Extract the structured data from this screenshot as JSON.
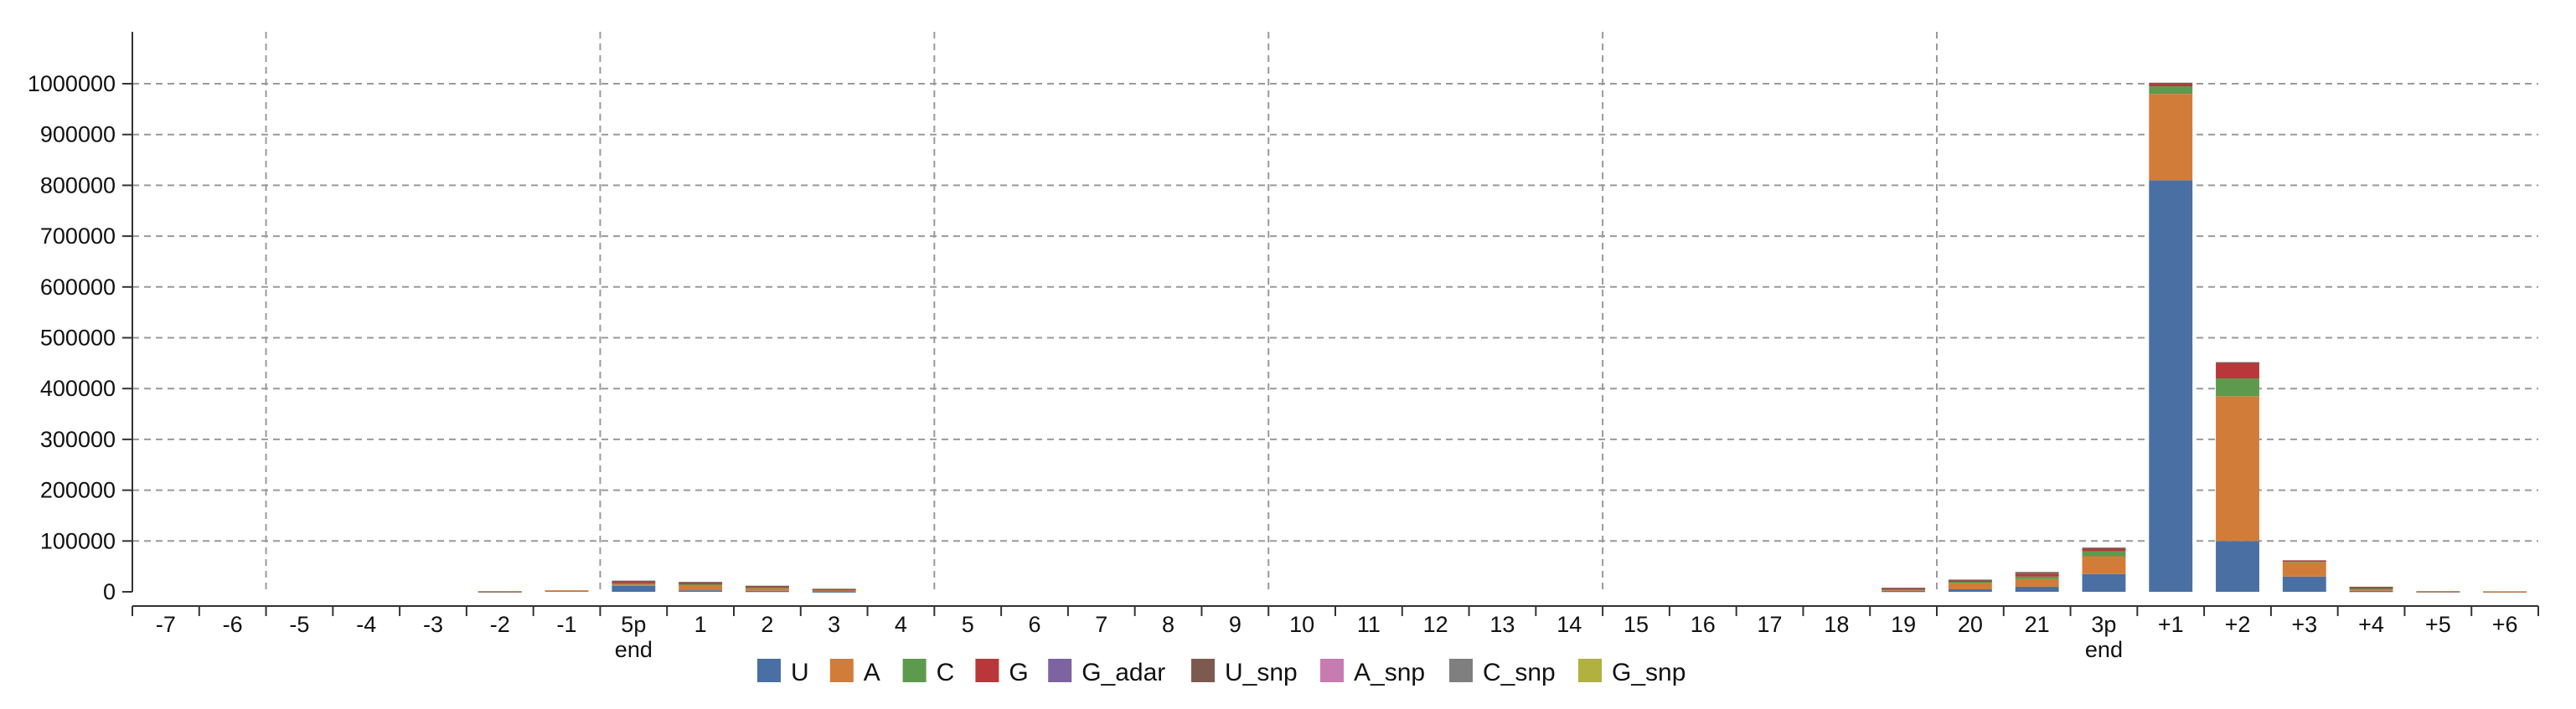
{
  "chart_data": {
    "type": "bar",
    "stacked": true,
    "title": "",
    "xlabel": "",
    "ylabel": "",
    "ylim": [
      0,
      1100000
    ],
    "yticks": [
      0,
      100000,
      200000,
      300000,
      400000,
      500000,
      600000,
      700000,
      800000,
      900000,
      1000000
    ],
    "ytick_labels": [
      "0",
      "100000",
      "200000",
      "300000",
      "400000",
      "500000",
      "600000",
      "700000",
      "800000",
      "900000",
      "1000000"
    ],
    "grid": {
      "horizontal": true,
      "vertical_dividers_after_categories": [
        "-6",
        "-1",
        "4",
        "9",
        "14",
        "19"
      ]
    },
    "legend_position": "bottom",
    "categories": [
      "-7",
      "-6",
      "-5",
      "-4",
      "-3",
      "-2",
      "-1",
      "5p\nend",
      "1",
      "2",
      "3",
      "4",
      "5",
      "6",
      "7",
      "8",
      "9",
      "10",
      "11",
      "12",
      "13",
      "14",
      "15",
      "16",
      "17",
      "18",
      "19",
      "20",
      "21",
      "3p\nend",
      "+1",
      "+2",
      "+3",
      "+4",
      "+5",
      "+6"
    ],
    "series": [
      {
        "name": "U",
        "color": "#4a6fa3",
        "values": [
          0,
          0,
          0,
          0,
          0,
          800,
          2500,
          12000,
          3000,
          2000,
          1000,
          0,
          0,
          0,
          0,
          0,
          0,
          0,
          0,
          0,
          0,
          0,
          0,
          0,
          0,
          0,
          2000,
          5000,
          10000,
          35000,
          810000,
          100000,
          30000,
          2000,
          1000,
          800
        ]
      },
      {
        "name": "A",
        "color": "#d27c3a",
        "values": [
          0,
          0,
          0,
          0,
          0,
          700,
          500,
          3000,
          12000,
          7000,
          4000,
          0,
          0,
          0,
          0,
          0,
          0,
          0,
          0,
          0,
          0,
          0,
          0,
          0,
          0,
          0,
          4000,
          12000,
          15000,
          35000,
          170000,
          285000,
          28000,
          4000,
          500,
          300
        ]
      },
      {
        "name": "C",
        "color": "#5e9a4e",
        "values": [
          0,
          0,
          0,
          0,
          0,
          0,
          0,
          3000,
          500,
          500,
          0,
          0,
          0,
          0,
          0,
          0,
          0,
          0,
          0,
          0,
          0,
          0,
          0,
          0,
          0,
          0,
          500,
          3000,
          5000,
          10000,
          15000,
          35000,
          3000,
          1000,
          0,
          0
        ]
      },
      {
        "name": "G",
        "color": "#b9373a",
        "values": [
          0,
          0,
          0,
          0,
          0,
          0,
          0,
          1000,
          2000,
          1500,
          500,
          0,
          0,
          0,
          0,
          0,
          0,
          0,
          0,
          0,
          0,
          0,
          0,
          0,
          0,
          0,
          500,
          2000,
          5000,
          5000,
          5000,
          30000,
          1000,
          2000,
          0,
          0
        ]
      },
      {
        "name": "G_adar",
        "color": "#7d63a0",
        "values": [
          0,
          0,
          0,
          0,
          0,
          0,
          0,
          0,
          0,
          0,
          0,
          0,
          0,
          0,
          0,
          0,
          0,
          0,
          0,
          0,
          0,
          0,
          0,
          0,
          0,
          0,
          0,
          0,
          0,
          0,
          0,
          0,
          0,
          0,
          0,
          0
        ]
      },
      {
        "name": "U_snp",
        "color": "#7d5a50",
        "values": [
          0,
          0,
          0,
          0,
          0,
          0,
          0,
          3000,
          2000,
          1000,
          500,
          0,
          0,
          0,
          0,
          0,
          0,
          0,
          0,
          0,
          0,
          0,
          0,
          0,
          0,
          0,
          1000,
          2000,
          4000,
          2000,
          2000,
          2000,
          0,
          1000,
          0,
          0
        ]
      },
      {
        "name": "A_snp",
        "color": "#c77bb0",
        "values": [
          0,
          0,
          0,
          0,
          0,
          0,
          0,
          0,
          0,
          0,
          0,
          0,
          0,
          0,
          0,
          0,
          0,
          0,
          0,
          0,
          0,
          0,
          0,
          0,
          0,
          0,
          0,
          0,
          0,
          0,
          0,
          0,
          0,
          0,
          0,
          0
        ]
      },
      {
        "name": "C_snp",
        "color": "#7f7f7f",
        "values": [
          0,
          0,
          0,
          0,
          0,
          0,
          0,
          0,
          0,
          0,
          0,
          0,
          0,
          0,
          0,
          0,
          0,
          0,
          0,
          0,
          0,
          0,
          0,
          0,
          0,
          0,
          0,
          0,
          0,
          0,
          0,
          0,
          0,
          0,
          0,
          0
        ]
      },
      {
        "name": "G_snp",
        "color": "#b0b13e",
        "values": [
          0,
          0,
          0,
          0,
          0,
          0,
          0,
          0,
          0,
          0,
          0,
          0,
          0,
          0,
          0,
          0,
          0,
          0,
          0,
          0,
          0,
          0,
          0,
          0,
          0,
          0,
          0,
          0,
          0,
          0,
          0,
          0,
          0,
          0,
          0,
          0
        ]
      }
    ]
  }
}
